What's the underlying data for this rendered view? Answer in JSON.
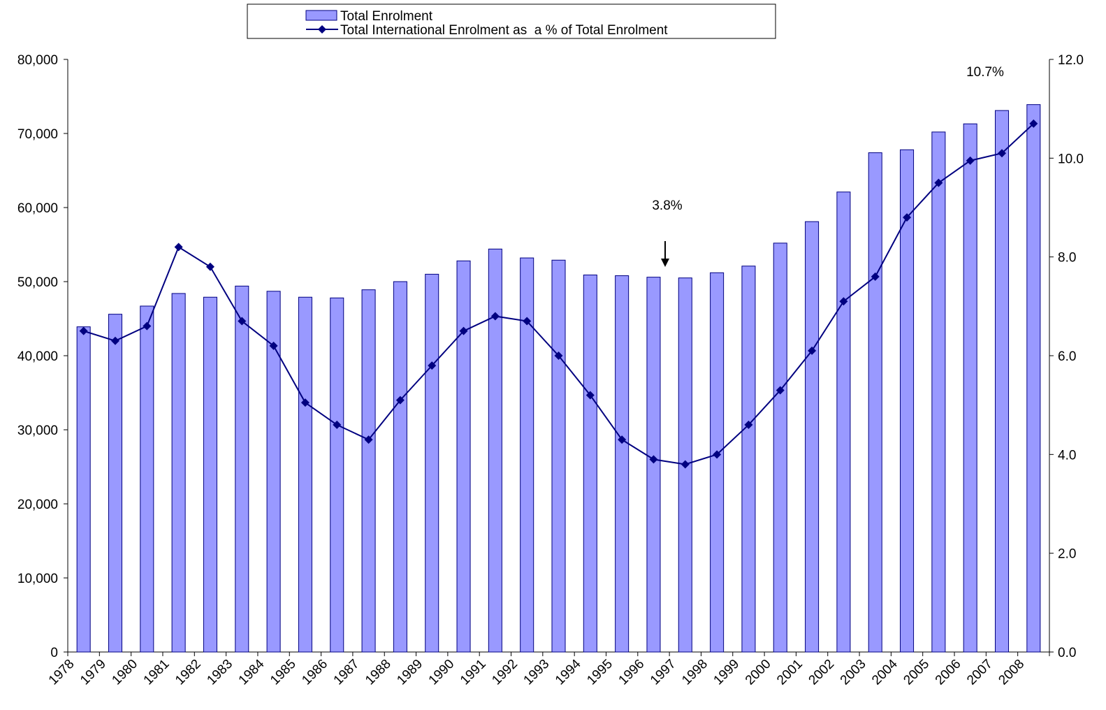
{
  "chart_data": {
    "type": "bar_line",
    "categories": [
      "1978",
      "1979",
      "1980",
      "1981",
      "1982",
      "1983",
      "1984",
      "1985",
      "1986",
      "1987",
      "1988",
      "1989",
      "1990",
      "1991",
      "1992",
      "1993",
      "1994",
      "1995",
      "1996",
      "1997",
      "1998",
      "1999",
      "2000",
      "2001",
      "2002",
      "2003",
      "2004",
      "2005",
      "2006",
      "2007",
      "2008"
    ],
    "series": [
      {
        "name": "Total Enrolment",
        "type": "bar",
        "color": "#9999ff",
        "edge": "#000080",
        "values": [
          43900,
          45600,
          46700,
          48400,
          47900,
          49400,
          48700,
          47900,
          47800,
          48900,
          50000,
          51000,
          52800,
          54400,
          53200,
          52900,
          50900,
          50800,
          50600,
          50500,
          51200,
          52100,
          55200,
          58100,
          62100,
          67400,
          67800,
          70200,
          71300,
          73100,
          73900
        ]
      },
      {
        "name": "Total International Enrolment as  a % of Total Enrolment",
        "type": "line",
        "axis": "y2",
        "color": "#000080",
        "values": [
          6.5,
          6.3,
          6.6,
          8.2,
          7.8,
          6.7,
          6.2,
          5.05,
          4.6,
          4.3,
          5.1,
          5.8,
          6.5,
          6.8,
          6.7,
          6.0,
          5.2,
          4.3,
          3.9,
          3.8,
          4.0,
          4.6,
          5.3,
          6.1,
          7.1,
          7.6,
          8.8,
          9.5,
          9.95,
          10.1,
          10.7
        ]
      }
    ],
    "ylim": [
      0,
      80000
    ],
    "yticks": [
      0,
      {
        "value": 10000,
        "label": "10,000"
      },
      {
        "value": 20000,
        "label": "20,000"
      },
      {
        "value": 30000,
        "label": "30,000"
      },
      {
        "value": 40000,
        "label": "40,000"
      },
      {
        "value": 50000,
        "label": "50,000"
      },
      {
        "value": 60000,
        "label": "60,000"
      },
      {
        "value": 70000,
        "label": "70,000"
      },
      {
        "value": 80000,
        "label": "80,000"
      }
    ],
    "y2lim": [
      0,
      12
    ],
    "y2ticks": [
      {
        "value": 0,
        "label": "0.0"
      },
      {
        "value": 2,
        "label": "2.0"
      },
      {
        "value": 4,
        "label": "4.0"
      },
      {
        "value": 6,
        "label": "6.0"
      },
      {
        "value": 8,
        "label": "8.0"
      },
      {
        "value": 10,
        "label": "10.0"
      },
      {
        "value": 12,
        "label": "12.0"
      }
    ],
    "legend": "top",
    "annotations": [
      {
        "text": "3.8%"
      },
      {
        "text": "10.7%"
      }
    ]
  }
}
